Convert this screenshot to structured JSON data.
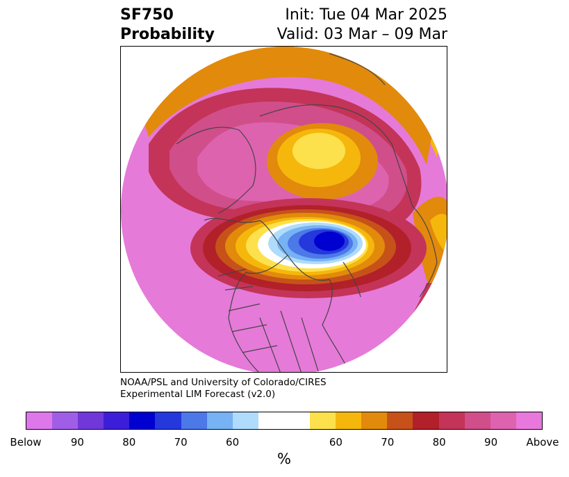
{
  "title": {
    "variable": "SF750",
    "product": "Probability",
    "init": "Init: Tue 04 Mar 2025",
    "valid": "Valid: 03 Mar – 09 Mar"
  },
  "credit": {
    "line1": "NOAA/PSL and University of Colorado/CIRES",
    "line2": "Experimental LIM Forecast (v2.0)"
  },
  "colorbar": {
    "unit": "%",
    "colors": [
      "#dd77ea",
      "#a05ee6",
      "#7038d8",
      "#3c1ed8",
      "#0000d0",
      "#2438dc",
      "#4c78e8",
      "#76b2f4",
      "#afdcfc",
      "#ffffff",
      "#ffffff",
      "#fde14c",
      "#f5b70c",
      "#e28a0c",
      "#c6521a",
      "#b2202a",
      "#c43458",
      "#d04e8a",
      "#dd63ae",
      "#e878dc"
    ],
    "ticks": [
      "Below",
      "90",
      "80",
      "70",
      "60",
      "60",
      "70",
      "80",
      "90",
      "Above"
    ]
  },
  "map": {
    "ocean_fill": "#e57ad9",
    "coastline_color": "#444444"
  }
}
